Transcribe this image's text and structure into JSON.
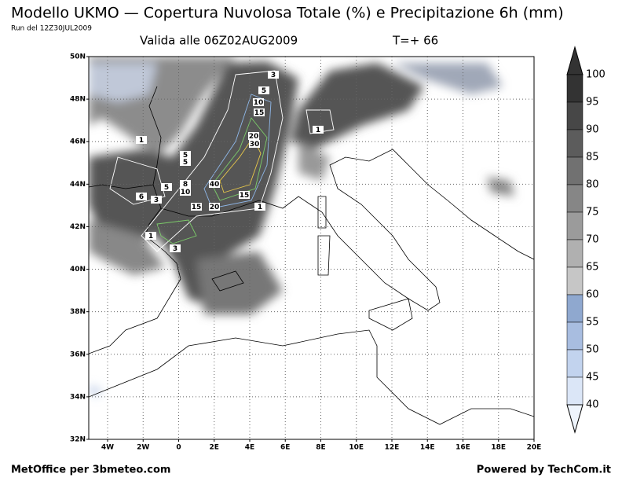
{
  "header": {
    "title": "Modello UKMO — Copertura Nuvolosa Totale (%) e Precipitazione 6h (mm)",
    "run": "Run del 12Z30JUL2009",
    "valid": "Valida alle 06Z02AUG2009",
    "step": "T=+ 66"
  },
  "map": {
    "lat_labels": [
      "50N",
      "48N",
      "46N",
      "44N",
      "42N",
      "40N",
      "38N",
      "36N",
      "34N",
      "32N"
    ],
    "lon_labels": [
      "4W",
      "2W",
      "0",
      "2E",
      "4E",
      "6E",
      "8E",
      "10E",
      "12E",
      "14E",
      "16E",
      "18E",
      "20E"
    ],
    "contour_labels": [
      "3",
      "5",
      "10",
      "15",
      "20",
      "30",
      "1",
      "1",
      "5",
      "5",
      "5",
      "8",
      "10",
      "40",
      "6",
      "3",
      "15",
      "1",
      "15",
      "20",
      "1",
      "3"
    ]
  },
  "colorbar": {
    "labels": [
      100,
      95,
      90,
      85,
      80,
      75,
      70,
      65,
      60,
      55,
      50,
      45,
      40
    ]
  },
  "footer": {
    "left": "MetOffice per 3bmeteo.com",
    "right": "Powered by TechCom.it"
  }
}
